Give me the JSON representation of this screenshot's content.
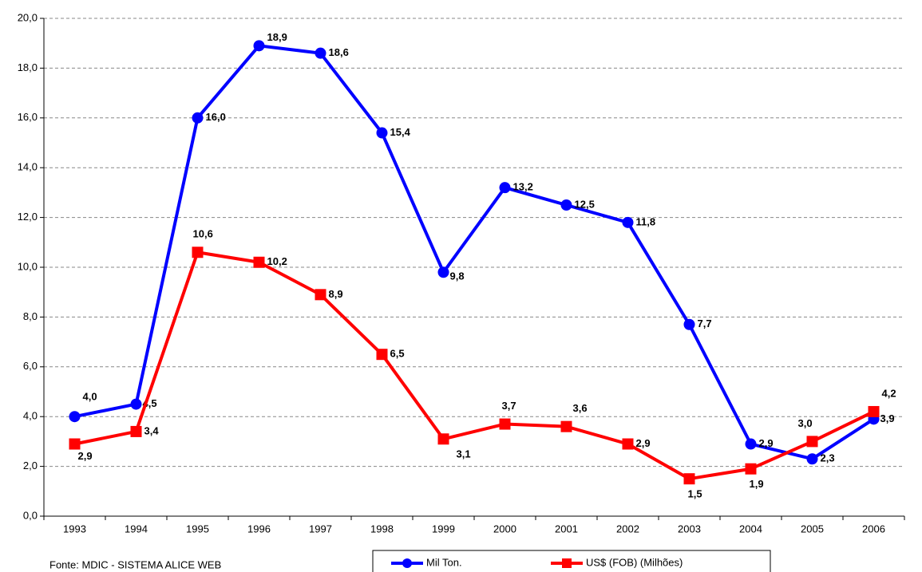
{
  "chart_data": {
    "type": "line",
    "categories": [
      "1993",
      "1994",
      "1995",
      "1996",
      "1997",
      "1998",
      "1999",
      "2000",
      "2001",
      "2002",
      "2003",
      "2004",
      "2005",
      "2006"
    ],
    "series": [
      {
        "name": "Mil Ton.",
        "color": "#0000ff",
        "marker": "circle",
        "values": [
          4.0,
          4.5,
          16.0,
          18.9,
          18.6,
          15.4,
          9.8,
          13.2,
          12.5,
          11.8,
          7.7,
          2.9,
          2.3,
          3.9
        ],
        "value_labels": [
          "4,0",
          "4,5",
          "16,0",
          "18,9",
          "18,6",
          "15,4",
          "9,8",
          "13,2",
          "12,5",
          "11,8",
          "7,7",
          "2,9",
          "2,3",
          "3,9"
        ]
      },
      {
        "name": "US$ (FOB) (Milhões)",
        "color": "#ff0000",
        "marker": "square",
        "values": [
          2.9,
          3.4,
          10.6,
          10.2,
          8.9,
          6.5,
          3.1,
          3.7,
          3.6,
          2.9,
          1.5,
          1.9,
          3.0,
          4.2
        ],
        "value_labels": [
          "2,9",
          "3,4",
          "10,6",
          "10,2",
          "8,9",
          "6,5",
          "3,1",
          "3,7",
          "3,6",
          "2,9",
          "1,5",
          "1,9",
          "3,0",
          "4,2"
        ]
      }
    ],
    "ylim": [
      0,
      20
    ],
    "yticks": [
      {
        "value": 0,
        "label": "0,0"
      },
      {
        "value": 2,
        "label": "2,0"
      },
      {
        "value": 4,
        "label": "4,0"
      },
      {
        "value": 6,
        "label": "6,0"
      },
      {
        "value": 8,
        "label": "8,0"
      },
      {
        "value": 10,
        "label": "10,0"
      },
      {
        "value": 12,
        "label": "12,0"
      },
      {
        "value": 14,
        "label": "14,0"
      },
      {
        "value": 16,
        "label": "16,0"
      },
      {
        "value": 18,
        "label": "18,0"
      },
      {
        "value": 20,
        "label": "20,0"
      }
    ],
    "grid": true,
    "source": "Fonte: MDIC - SISTEMA ALICE WEB"
  }
}
